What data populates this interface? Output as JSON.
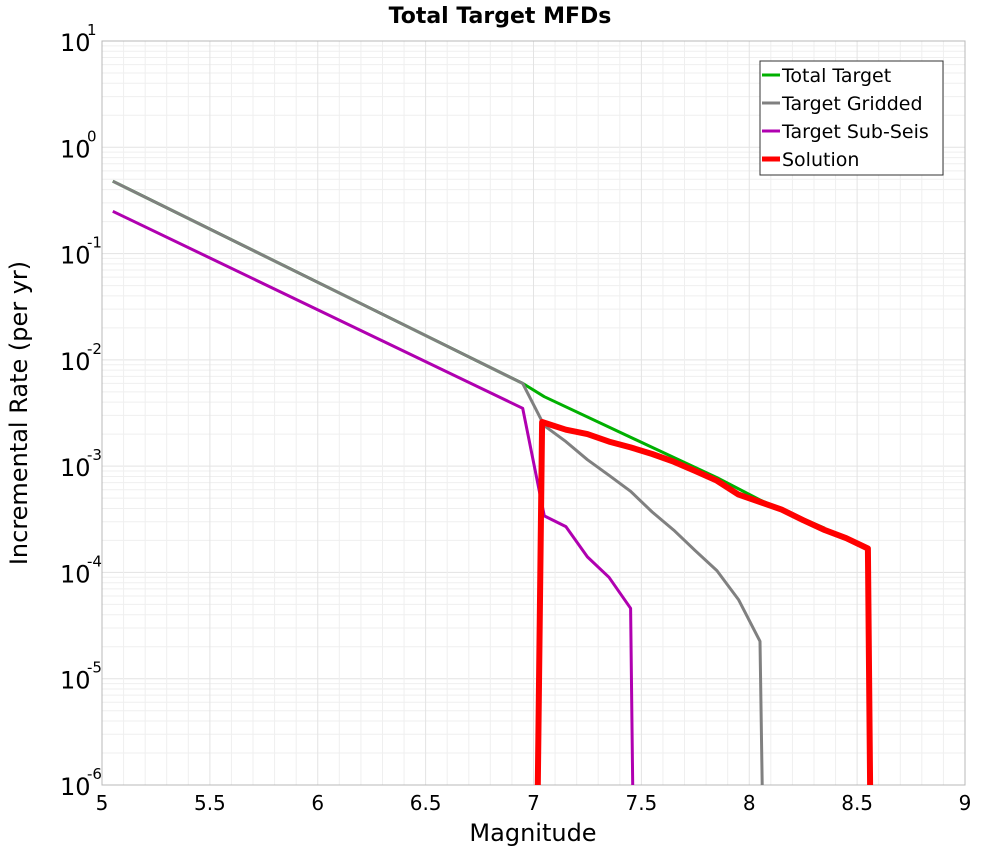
{
  "chart_data": {
    "type": "line",
    "title": "Total Target MFDs",
    "xlabel": "Magnitude",
    "ylabel": "Incremental Rate (per yr)",
    "xlim": [
      5,
      9
    ],
    "ylim": [
      1e-06,
      10
    ],
    "yscale": "log",
    "grid": true,
    "legend_position": "top-right",
    "x_ticks": [
      5,
      5.5,
      6,
      6.5,
      7,
      7.5,
      8,
      8.5,
      9
    ],
    "x_tick_labels": [
      "5",
      "5.5",
      "6",
      "6.5",
      "7",
      "7.5",
      "8",
      "8.5",
      "9"
    ],
    "y_ticks": [
      {
        "value": 10,
        "base": "10",
        "exp": "1"
      },
      {
        "value": 1,
        "base": "10",
        "exp": "0"
      },
      {
        "value": 0.1,
        "base": "10",
        "exp": "-1"
      },
      {
        "value": 0.01,
        "base": "10",
        "exp": "-2"
      },
      {
        "value": 0.001,
        "base": "10",
        "exp": "-3"
      },
      {
        "value": 0.0001,
        "base": "10",
        "exp": "-4"
      },
      {
        "value": 1e-05,
        "base": "10",
        "exp": "-5"
      },
      {
        "value": 1e-06,
        "base": "10",
        "exp": "-6"
      }
    ],
    "series": [
      {
        "name": "Total Target",
        "color": "#00b000",
        "width": 3,
        "x": [
          5.05,
          6.95,
          7.05,
          7.55,
          7.85,
          8.05,
          8.35
        ],
        "y": [
          0.48,
          0.006,
          0.0045,
          0.0015,
          0.00078,
          0.00048,
          0.00026
        ]
      },
      {
        "name": "Target Gridded",
        "color": "#808080",
        "width": 3,
        "x": [
          5.05,
          6.95,
          7.05,
          7.15,
          7.25,
          7.35,
          7.45,
          7.55,
          7.65,
          7.75,
          7.85,
          7.95,
          8.05,
          8.06
        ],
        "y": [
          0.48,
          0.006,
          0.0024,
          0.0017,
          0.00115,
          0.00082,
          0.00058,
          0.00037,
          0.00025,
          0.00016,
          0.000104,
          5.55e-05,
          2.25e-05,
          1e-06
        ]
      },
      {
        "name": "Target Sub-Seis",
        "color": "#b000b0",
        "width": 3,
        "x": [
          5.05,
          6.95,
          7.05,
          7.15,
          7.25,
          7.35,
          7.45,
          7.46
        ],
        "y": [
          0.25,
          0.0035,
          0.00034,
          0.00027,
          0.00014,
          9e-05,
          4.6e-05,
          1e-06
        ]
      },
      {
        "name": "Solution",
        "color": "#ff0000",
        "width": 6,
        "x": [
          7.02,
          7.04,
          7.15,
          7.25,
          7.35,
          7.45,
          7.55,
          7.65,
          7.75,
          7.85,
          7.95,
          8.05,
          8.15,
          8.25,
          8.35,
          8.45,
          8.55,
          8.56
        ],
        "y": [
          1e-06,
          0.0026,
          0.0022,
          0.002,
          0.0017,
          0.0015,
          0.0013,
          0.0011,
          0.0009,
          0.00073,
          0.00054,
          0.00046,
          0.00039,
          0.00031,
          0.00025,
          0.00021,
          0.000168,
          1e-06
        ]
      }
    ]
  }
}
